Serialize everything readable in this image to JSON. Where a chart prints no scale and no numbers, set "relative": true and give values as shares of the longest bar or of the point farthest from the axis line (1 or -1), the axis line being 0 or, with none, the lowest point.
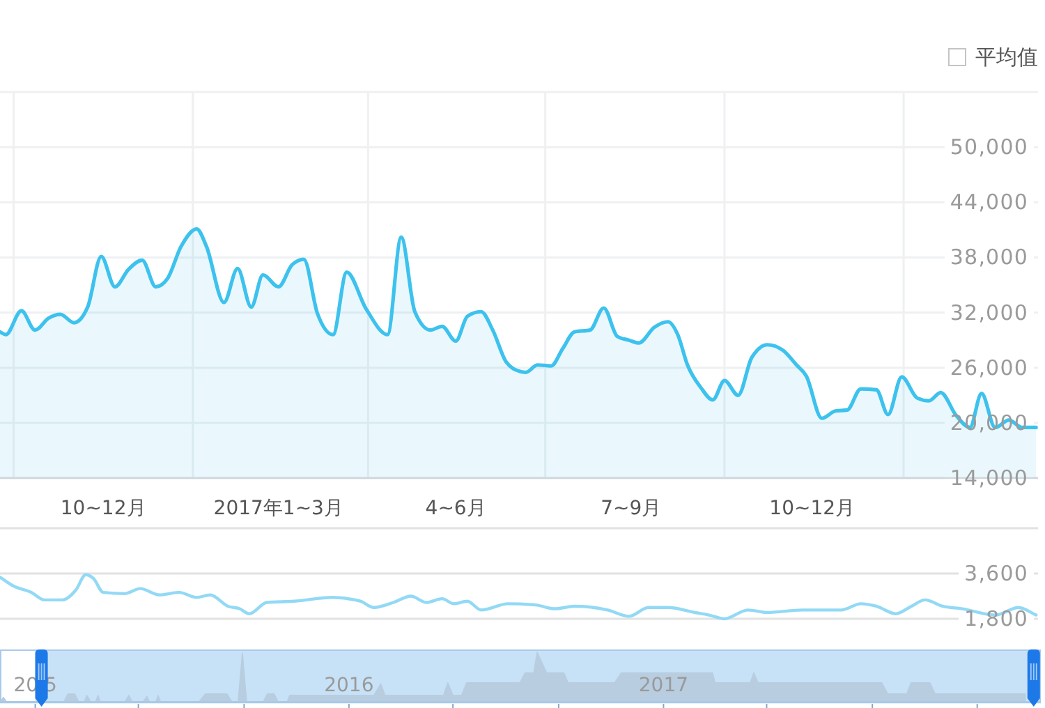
{
  "chart_data": [
    {
      "type": "area",
      "color": "#3dc2ee",
      "annotations": [
        "平均值"
      ],
      "grid": true,
      "xlim": [
        "2016-09-24",
        "2018-03-11"
      ],
      "ylim": [
        14000,
        56000
      ],
      "xticks": [
        {
          "value": "2016-10-01",
          "label": null
        },
        {
          "value": "2016-11-16",
          "label": "10~12月"
        },
        {
          "value": "2017-01-01",
          "label": null
        },
        {
          "value": "2017-02-14",
          "label": "2017年1~3月"
        },
        {
          "value": "2017-04-01",
          "label": null
        },
        {
          "value": "2017-05-16",
          "label": "4~6月"
        },
        {
          "value": "2017-07-01",
          "label": null
        },
        {
          "value": "2017-08-14",
          "label": "7~9月"
        },
        {
          "value": "2017-10-01",
          "label": null
        },
        {
          "value": "2017-11-15",
          "label": "10~12月"
        },
        {
          "value": "2018-01-01",
          "label": null
        }
      ],
      "yticks": [
        {
          "value": 14000,
          "label": "14,000"
        },
        {
          "value": 20000,
          "label": "20,000"
        },
        {
          "value": 26000,
          "label": "26,000"
        },
        {
          "value": 32000,
          "label": "32,000"
        },
        {
          "value": 38000,
          "label": "38,000"
        },
        {
          "value": 44000,
          "label": "44,000"
        },
        {
          "value": 50000,
          "label": "50,000"
        },
        {
          "value": 56000,
          "label": null
        }
      ],
      "x": [
        "2016-09-24",
        "2016-09-27",
        "2016-10-05",
        "2016-10-12",
        "2016-10-19",
        "2016-10-25",
        "2016-11-01",
        "2016-11-08",
        "2016-11-15",
        "2016-11-22",
        "2016-11-29",
        "2016-12-06",
        "2016-12-13",
        "2016-12-19",
        "2016-12-26",
        "2017-01-03",
        "2017-01-08",
        "2017-01-17",
        "2017-01-24",
        "2017-01-31",
        "2017-02-06",
        "2017-02-14",
        "2017-02-21",
        "2017-02-27",
        "2017-03-06",
        "2017-03-14",
        "2017-03-21",
        "2017-03-31",
        "2017-04-11",
        "2017-04-18",
        "2017-04-25",
        "2017-05-03",
        "2017-05-09",
        "2017-05-16",
        "2017-05-22",
        "2017-05-29",
        "2017-06-04",
        "2017-06-11",
        "2017-06-18",
        "2017-06-21",
        "2017-06-27",
        "2017-07-04",
        "2017-07-10",
        "2017-07-16",
        "2017-07-24",
        "2017-07-31",
        "2017-08-07",
        "2017-08-13",
        "2017-08-18",
        "2017-08-26",
        "2017-09-02",
        "2017-09-07",
        "2017-09-12",
        "2017-09-19",
        "2017-09-25",
        "2017-10-01",
        "2017-10-08",
        "2017-10-15",
        "2017-10-23",
        "2017-10-31",
        "2017-11-07",
        "2017-11-12",
        "2017-11-20",
        "2017-11-27",
        "2017-12-03",
        "2017-12-10",
        "2017-12-18",
        "2017-12-24",
        "2017-12-31",
        "2018-01-08",
        "2018-01-14",
        "2018-01-20",
        "2018-01-28",
        "2018-02-04",
        "2018-02-10",
        "2018-02-17",
        "2018-02-24",
        "2018-03-03",
        "2018-03-10"
      ],
      "values": [
        29900,
        29600,
        32200,
        30100,
        31400,
        31800,
        30900,
        32600,
        38100,
        34800,
        36700,
        37700,
        34800,
        35700,
        39200,
        41100,
        39200,
        33100,
        36800,
        32600,
        36100,
        34800,
        37200,
        37800,
        31900,
        29600,
        36400,
        32400,
        29600,
        40200,
        32100,
        30100,
        30500,
        28900,
        31600,
        32100,
        30100,
        26600,
        25600,
        25500,
        26300,
        26200,
        28100,
        29900,
        30100,
        32500,
        29400,
        29000,
        28700,
        30400,
        31000,
        29600,
        26300,
        23800,
        22500,
        24600,
        23000,
        27100,
        28500,
        27900,
        26300,
        25100,
        20500,
        21300,
        21400,
        23700,
        23600,
        20900,
        25000,
        22700,
        22400,
        23300,
        20800,
        19500,
        23200,
        19500,
        20300,
        19500,
        19500
      ]
    },
    {
      "type": "line",
      "color": "#92d9f5",
      "grid": "y",
      "tick_labels": "y",
      "xlim": [
        "2016-09-24",
        "2018-03-11"
      ],
      "ylim": [
        1800,
        5400
      ],
      "yticks": [
        {
          "value": 1800,
          "label": "1,800"
        },
        {
          "value": 3600,
          "label": "3,600"
        },
        {
          "value": 5400,
          "label": null
        }
      ],
      "x": [
        "2016-09-24",
        "2016-10-01",
        "2016-10-10",
        "2016-10-17",
        "2016-10-26",
        "2016-11-02",
        "2016-11-07",
        "2016-11-11",
        "2016-11-16",
        "2016-11-27",
        "2016-12-05",
        "2016-12-15",
        "2016-12-25",
        "2017-01-03",
        "2017-01-10",
        "2017-01-19",
        "2017-01-25",
        "2017-01-30",
        "2017-02-08",
        "2017-02-22",
        "2017-03-14",
        "2017-03-28",
        "2017-04-04",
        "2017-04-14",
        "2017-04-23",
        "2017-05-01",
        "2017-05-09",
        "2017-05-15",
        "2017-05-22",
        "2017-05-29",
        "2017-06-12",
        "2017-06-26",
        "2017-07-06",
        "2017-07-16",
        "2017-08-02",
        "2017-08-13",
        "2017-08-23",
        "2017-09-02",
        "2017-09-16",
        "2017-09-23",
        "2017-10-01",
        "2017-10-13",
        "2017-10-23",
        "2017-11-10",
        "2017-11-30",
        "2017-12-10",
        "2017-12-18",
        "2017-12-28",
        "2018-01-05",
        "2018-01-12",
        "2018-01-21",
        "2018-01-31",
        "2018-02-17",
        "2018-03-01",
        "2018-03-10"
      ],
      "values": [
        3450,
        3100,
        2850,
        2550,
        2550,
        2950,
        3550,
        3400,
        2850,
        2800,
        3000,
        2750,
        2850,
        2650,
        2750,
        2300,
        2200,
        2000,
        2450,
        2500,
        2650,
        2500,
        2250,
        2450,
        2700,
        2450,
        2600,
        2400,
        2500,
        2150,
        2400,
        2350,
        2200,
        2300,
        2150,
        1900,
        2250,
        2250,
        2050,
        1950,
        1800,
        2150,
        2050,
        2150,
        2150,
        2400,
        2300,
        2000,
        2300,
        2550,
        2300,
        2200,
        1950,
        2250,
        1950
      ]
    },
    {
      "type": "area",
      "relative": true,
      "color": "#b8cde0",
      "tick_labels": "x",
      "xlim": [
        "2014-11-21",
        "2018-03-16"
      ],
      "xticks": [
        {
          "value": "2015-01-01",
          "label": "20 5"
        },
        {
          "value": "2015-05-01",
          "label": null
        },
        {
          "value": "2015-09-01",
          "label": null
        },
        {
          "value": "2016-01-01",
          "label": "2016"
        },
        {
          "value": "2016-05-01",
          "label": null
        },
        {
          "value": "2016-09-01",
          "label": null
        },
        {
          "value": "2017-01-01",
          "label": "2017"
        },
        {
          "value": "2017-05-01",
          "label": null
        },
        {
          "value": "2017-09-01",
          "label": null
        },
        {
          "value": "2018-01-01",
          "label": null
        }
      ],
      "bands": [
        {
          "axis": "x",
          "from": "2015-01-01",
          "to": "2018-03-15",
          "color": "#c7e2f7"
        }
      ],
      "x": [
        "2014-11-21",
        "2014-11-25",
        "2014-11-29",
        "2015-02-03",
        "2015-02-08",
        "2015-02-16",
        "2015-02-21",
        "2015-02-27",
        "2015-03-02",
        "2015-03-07",
        "2015-03-12",
        "2015-03-15",
        "2015-03-18",
        "2015-04-15",
        "2015-04-20",
        "2015-04-24",
        "2015-05-06",
        "2015-05-11",
        "2015-05-14",
        "2015-05-21",
        "2015-05-24",
        "2015-05-27",
        "2015-07-10",
        "2015-07-18",
        "2015-08-12",
        "2015-08-18",
        "2015-08-25",
        "2015-08-30",
        "2015-09-04",
        "2015-09-23",
        "2015-09-28",
        "2015-10-06",
        "2015-10-11",
        "2015-10-21",
        "2015-10-24",
        "2016-01-30",
        "2016-02-07",
        "2016-02-12",
        "2016-04-20",
        "2016-04-25",
        "2016-05-01",
        "2016-05-11",
        "2016-05-17",
        "2016-07-18",
        "2016-07-24",
        "2016-08-03",
        "2016-08-07",
        "2016-08-18",
        "2016-09-07",
        "2016-09-12",
        "2016-11-05",
        "2016-11-13",
        "2017-02-27",
        "2017-03-02",
        "2017-04-12",
        "2017-04-16",
        "2017-04-21",
        "2017-09-12",
        "2017-09-19",
        "2017-10-11",
        "2017-10-16",
        "2017-11-07",
        "2017-11-13",
        "2018-02-26"
      ],
      "values": [
        0,
        0.1,
        0,
        0,
        0.17,
        0.17,
        0,
        0,
        0.14,
        0,
        0,
        0.14,
        0,
        0,
        0.14,
        0,
        0,
        0.12,
        0,
        0,
        0.14,
        0,
        0,
        0.17,
        0.17,
        0,
        0,
        0.99,
        0,
        0,
        0.17,
        0.17,
        0,
        0,
        0.14,
        0.14,
        0.37,
        0.14,
        0.14,
        0.39,
        0.14,
        0.14,
        0.39,
        0.39,
        0.59,
        0.59,
        1,
        0.59,
        0.59,
        0.39,
        0.39,
        0.59,
        0.59,
        0.39,
        0.39,
        0.59,
        0.39,
        0.39,
        0.17,
        0.17,
        0.39,
        0.39,
        0.17,
        0.17
      ]
    }
  ]
}
